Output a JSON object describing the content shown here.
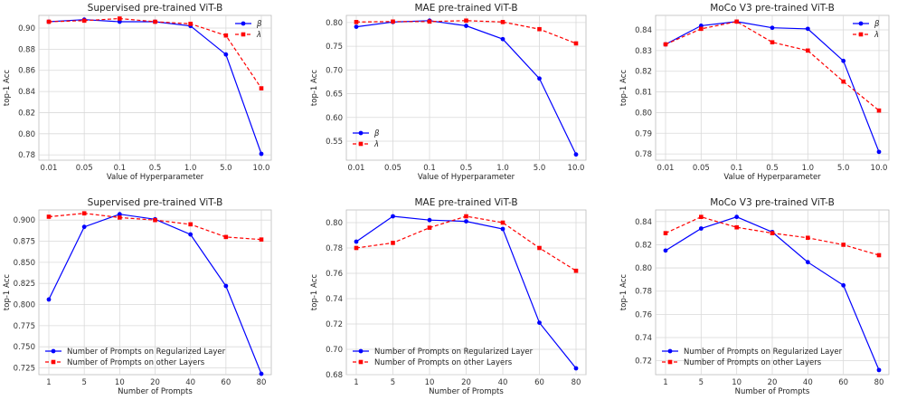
{
  "chart_data": [
    {
      "type": "line",
      "title": "Supervised pre-trained ViT-B",
      "xlabel": "Value of Hyperparameter",
      "ylabel": "top-1 Acc",
      "categories": [
        "0.01",
        "0.05",
        "0.1",
        "0.5",
        "1.0",
        "5.0",
        "10.0"
      ],
      "ylim": [
        0.775,
        0.912
      ],
      "yticks": [
        0.78,
        0.8,
        0.82,
        0.84,
        0.86,
        0.88,
        0.9
      ],
      "ytick_labels": [
        "0.78",
        "0.80",
        "0.82",
        "0.84",
        "0.86",
        "0.88",
        "0.90"
      ],
      "legend_position": "top-right",
      "grid": true,
      "series": [
        {
          "name": "β",
          "color": "#0000ff",
          "marker": "circle",
          "linestyle": "solid",
          "values": [
            0.906,
            0.908,
            0.906,
            0.906,
            0.902,
            0.875,
            0.781
          ]
        },
        {
          "name": "λ",
          "color": "#ff0000",
          "marker": "square",
          "linestyle": "dashed",
          "values": [
            0.906,
            0.907,
            0.909,
            0.906,
            0.904,
            0.893,
            0.843
          ]
        }
      ]
    },
    {
      "type": "line",
      "title": "MAE pre-trained ViT-B",
      "xlabel": "Value of Hyperparameter",
      "ylabel": "top-1 Acc",
      "categories": [
        "0.01",
        "0.05",
        "0.1",
        "0.5",
        "1.0",
        "5.0",
        "10.0"
      ],
      "ylim": [
        0.51,
        0.815
      ],
      "yticks": [
        0.55,
        0.6,
        0.65,
        0.7,
        0.75,
        0.8
      ],
      "ytick_labels": [
        "0.55",
        "0.60",
        "0.65",
        "0.70",
        "0.75",
        "0.80"
      ],
      "legend_position": "lower-left",
      "grid": true,
      "series": [
        {
          "name": "β",
          "color": "#0000ff",
          "marker": "circle",
          "linestyle": "solid",
          "values": [
            0.791,
            0.801,
            0.804,
            0.793,
            0.765,
            0.682,
            0.522
          ]
        },
        {
          "name": "λ",
          "color": "#ff0000",
          "marker": "square",
          "linestyle": "dashed",
          "values": [
            0.801,
            0.802,
            0.802,
            0.804,
            0.801,
            0.786,
            0.756
          ]
        }
      ]
    },
    {
      "type": "line",
      "title": "MoCo V3 pre-trained ViT-B",
      "xlabel": "Value of Hyperparameter",
      "ylabel": "top-1 Acc",
      "categories": [
        "0.01",
        "0.05",
        "0.1",
        "0.5",
        "1.0",
        "5.0",
        "10.0"
      ],
      "ylim": [
        0.777,
        0.847
      ],
      "yticks": [
        0.78,
        0.79,
        0.8,
        0.81,
        0.82,
        0.83,
        0.84
      ],
      "ytick_labels": [
        "0.78",
        "0.79",
        "0.80",
        "0.81",
        "0.82",
        "0.83",
        "0.84"
      ],
      "legend_position": "top-right",
      "grid": true,
      "series": [
        {
          "name": "β",
          "color": "#0000ff",
          "marker": "circle",
          "linestyle": "solid",
          "values": [
            0.833,
            0.842,
            0.844,
            0.841,
            0.8405,
            0.825,
            0.781
          ]
        },
        {
          "name": "λ",
          "color": "#ff0000",
          "marker": "square",
          "linestyle": "dashed",
          "values": [
            0.833,
            0.8405,
            0.844,
            0.834,
            0.83,
            0.815,
            0.801
          ]
        }
      ]
    },
    {
      "type": "line",
      "title": "Supervised pre-trained ViT-B",
      "xlabel": "Number of Prompts",
      "ylabel": "top-1 Acc",
      "categories": [
        "1",
        "5",
        "10",
        "20",
        "40",
        "60",
        "80"
      ],
      "ylim": [
        0.717,
        0.912
      ],
      "yticks": [
        0.725,
        0.75,
        0.775,
        0.8,
        0.825,
        0.85,
        0.875,
        0.9
      ],
      "ytick_labels": [
        "0.725",
        "0.750",
        "0.775",
        "0.800",
        "0.825",
        "0.850",
        "0.875",
        "0.900"
      ],
      "legend_position": "lower-left",
      "grid": true,
      "series": [
        {
          "name": "Number of Prompts on Regularized Layer",
          "color": "#0000ff",
          "marker": "circle",
          "linestyle": "solid",
          "values": [
            0.806,
            0.892,
            0.907,
            0.901,
            0.883,
            0.822,
            0.718
          ]
        },
        {
          "name": "Number of Prompts on other Layers",
          "color": "#ff0000",
          "marker": "square",
          "linestyle": "dashed",
          "values": [
            0.904,
            0.908,
            0.903,
            0.9,
            0.895,
            0.88,
            0.877
          ]
        }
      ]
    },
    {
      "type": "line",
      "title": "MAE pre-trained ViT-B",
      "xlabel": "Number of Prompts",
      "ylabel": "top-1 Acc",
      "categories": [
        "1",
        "5",
        "10",
        "20",
        "40",
        "60",
        "80"
      ],
      "ylim": [
        0.68,
        0.81
      ],
      "yticks": [
        0.68,
        0.7,
        0.72,
        0.74,
        0.76,
        0.78,
        0.8
      ],
      "ytick_labels": [
        "0.68",
        "0.70",
        "0.72",
        "0.74",
        "0.76",
        "0.78",
        "0.80"
      ],
      "legend_position": "lower-left",
      "grid": true,
      "series": [
        {
          "name": "Number of Prompts on Regularized Layer",
          "color": "#0000ff",
          "marker": "circle",
          "linestyle": "solid",
          "values": [
            0.785,
            0.805,
            0.802,
            0.801,
            0.795,
            0.721,
            0.685
          ]
        },
        {
          "name": "Number of Prompts on other Layers",
          "color": "#ff0000",
          "marker": "square",
          "linestyle": "dashed",
          "values": [
            0.78,
            0.784,
            0.796,
            0.805,
            0.8,
            0.78,
            0.762
          ]
        }
      ]
    },
    {
      "type": "line",
      "title": "MoCo V3 pre-trained ViT-B",
      "xlabel": "Number of Prompts",
      "ylabel": "top-1 Acc",
      "categories": [
        "1",
        "5",
        "10",
        "20",
        "40",
        "60",
        "80"
      ],
      "ylim": [
        0.708,
        0.85
      ],
      "yticks": [
        0.72,
        0.74,
        0.76,
        0.78,
        0.8,
        0.82,
        0.84
      ],
      "ytick_labels": [
        "0.72",
        "0.74",
        "0.76",
        "0.78",
        "0.80",
        "0.82",
        "0.84"
      ],
      "legend_position": "lower-left",
      "grid": true,
      "series": [
        {
          "name": "Number of Prompts on Regularized Layer",
          "color": "#0000ff",
          "marker": "circle",
          "linestyle": "solid",
          "values": [
            0.815,
            0.834,
            0.844,
            0.831,
            0.805,
            0.785,
            0.712
          ]
        },
        {
          "name": "Number of Prompts on other Layers",
          "color": "#ff0000",
          "marker": "square",
          "linestyle": "dashed",
          "values": [
            0.83,
            0.844,
            0.835,
            0.83,
            0.826,
            0.82,
            0.811
          ]
        }
      ]
    }
  ]
}
